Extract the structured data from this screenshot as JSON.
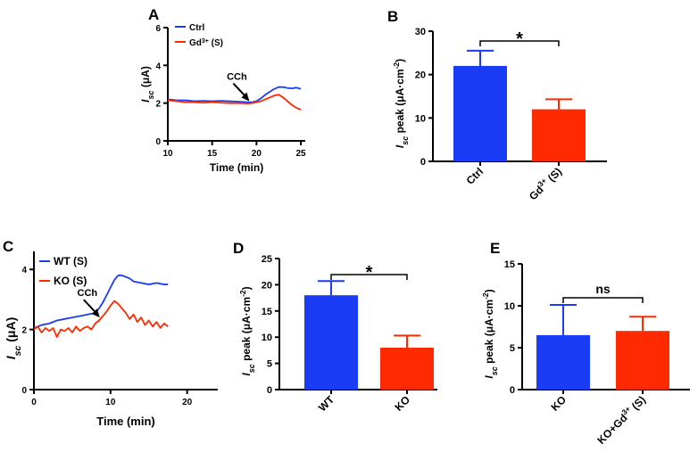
{
  "colors": {
    "blue": "#1a3cf5",
    "red": "#ff2a00",
    "black": "#000000"
  },
  "chart_data": [
    {
      "panel": "A",
      "type": "line",
      "xlabel": "Time (min)",
      "ylabel": "Isc (μA)",
      "ylabel_parts": {
        "main": "I",
        "sub": "sc",
        "rest": " (μA)"
      },
      "xlim": [
        10,
        25.5
      ],
      "ylim": [
        0,
        6
      ],
      "xticks": [
        10,
        15,
        20,
        25
      ],
      "yticks": [
        0,
        2,
        4,
        6
      ],
      "annotation": {
        "text": "CCh",
        "x": 19.2,
        "y": 2.1
      },
      "legend": [
        {
          "label": "Ctrl",
          "color": "#1a3cf5"
        },
        {
          "label": "Gd",
          "sup": "3+",
          "suffix": " (S)",
          "color": "#ff2a00"
        }
      ],
      "series": [
        {
          "name": "Ctrl",
          "color": "#1a3cf5",
          "x": [
            10,
            11,
            12,
            13,
            14,
            15,
            16,
            17,
            18,
            19,
            19.5,
            20,
            20.5,
            21,
            21.5,
            22,
            22.5,
            23,
            23.5,
            24,
            24.5,
            25
          ],
          "y": [
            2.2,
            2.15,
            2.15,
            2.1,
            2.12,
            2.1,
            2.12,
            2.1,
            2.08,
            2.05,
            2.05,
            2.1,
            2.25,
            2.45,
            2.6,
            2.75,
            2.85,
            2.85,
            2.8,
            2.78,
            2.82,
            2.75
          ]
        },
        {
          "name": "Gd3+ (S)",
          "color": "#ff2a00",
          "x": [
            10,
            11,
            12,
            13,
            14,
            15,
            16,
            17,
            18,
            19,
            19.5,
            20,
            20.5,
            21,
            21.5,
            22,
            22.5,
            23,
            23.5,
            24,
            24.5,
            25
          ],
          "y": [
            2.15,
            2.1,
            2.05,
            2.05,
            2.02,
            2.05,
            2.02,
            2.0,
            2.0,
            1.98,
            2.0,
            2.05,
            2.1,
            2.2,
            2.3,
            2.4,
            2.45,
            2.3,
            2.1,
            1.9,
            1.75,
            1.65
          ]
        }
      ]
    },
    {
      "panel": "B",
      "type": "bar",
      "ylabel": "Isc peak (μA·cm⁻²)",
      "ylabel_parts": {
        "main": "I",
        "sub": "sc",
        "rest": " peak (μA·cm",
        "sup": "-2",
        "end": ")"
      },
      "ylim": [
        0,
        30
      ],
      "yticks": [
        0,
        10,
        20,
        30
      ],
      "categories": [
        "Ctrl",
        "Gd3+ (S)"
      ],
      "category_parts": [
        {
          "main": "Ctrl"
        },
        {
          "main": "Gd",
          "sup": "3+",
          "suffix": " (S)"
        }
      ],
      "values": [
        22,
        12
      ],
      "errors": [
        3.5,
        2.3
      ],
      "colors": [
        "#1a3cf5",
        "#ff2a00"
      ],
      "significance": "*"
    },
    {
      "panel": "C",
      "type": "line",
      "xlabel": "Time (min)",
      "ylabel": "Isc (μA)",
      "ylabel_parts": {
        "main": "I",
        "sub": "sc",
        "rest": " (μA)"
      },
      "xlim": [
        0,
        24
      ],
      "ylim": [
        0,
        4.6
      ],
      "xticks": [
        0,
        10,
        20
      ],
      "yticks": [
        0,
        2,
        4
      ],
      "annotation": {
        "text": "CCh",
        "x": 8.6,
        "y": 2.4
      },
      "legend": [
        {
          "label": "WT (S)",
          "color": "#1a3cf5"
        },
        {
          "label": "KO (S)",
          "color": "#ff2a00"
        }
      ],
      "series": [
        {
          "name": "WT (S)",
          "color": "#1a3cf5",
          "x": [
            0,
            1,
            2,
            3,
            4,
            5,
            6,
            7,
            8,
            8.5,
            9,
            9.5,
            10,
            10.5,
            11,
            11.5,
            12,
            12.5,
            13,
            14,
            15,
            16,
            17,
            17.5
          ],
          "y": [
            2.05,
            2.15,
            2.2,
            2.3,
            2.35,
            2.4,
            2.45,
            2.5,
            2.55,
            2.7,
            2.9,
            3.15,
            3.4,
            3.65,
            3.8,
            3.8,
            3.75,
            3.7,
            3.6,
            3.55,
            3.5,
            3.55,
            3.5,
            3.5
          ]
        },
        {
          "name": "KO (S)",
          "color": "#ff2a00",
          "x": [
            0,
            0.5,
            1,
            1.5,
            2,
            2.5,
            3,
            3.5,
            4,
            4.5,
            5,
            5.5,
            6,
            6.5,
            7,
            7.5,
            8,
            8.5,
            9,
            9.5,
            10,
            10.5,
            11,
            11.5,
            12,
            12.5,
            13,
            13.5,
            14,
            14.5,
            15,
            15.5,
            16,
            16.5,
            17,
            17.5
          ],
          "y": [
            2.0,
            2.1,
            1.9,
            2.05,
            1.95,
            2.05,
            1.75,
            2.0,
            1.95,
            2.05,
            1.9,
            2.1,
            1.95,
            2.05,
            2.1,
            2.0,
            2.2,
            2.3,
            2.45,
            2.6,
            2.8,
            2.95,
            2.85,
            2.7,
            2.55,
            2.35,
            2.5,
            2.25,
            2.4,
            2.15,
            2.3,
            2.1,
            2.25,
            2.05,
            2.2,
            2.1
          ]
        }
      ]
    },
    {
      "panel": "D",
      "type": "bar",
      "ylabel": "Isc peak (μA·cm⁻²)",
      "ylabel_parts": {
        "main": "I",
        "sub": "sc",
        "rest": " peak (μA·cm",
        "sup": "-2",
        "end": ")"
      },
      "ylim": [
        0,
        25
      ],
      "yticks": [
        0,
        5,
        10,
        15,
        20,
        25
      ],
      "categories": [
        "WT",
        "KO"
      ],
      "category_parts": [
        {
          "main": "WT"
        },
        {
          "main": "KO"
        }
      ],
      "values": [
        18,
        8
      ],
      "errors": [
        2.7,
        2.3
      ],
      "colors": [
        "#1a3cf5",
        "#ff2a00"
      ],
      "significance": "*"
    },
    {
      "panel": "E",
      "type": "bar",
      "ylabel": "Isc peak (μA·cm⁻²)",
      "ylabel_parts": {
        "main": "I",
        "sub": "sc",
        "rest": " peak (μA·cm",
        "sup": "-2",
        "end": ")"
      },
      "ylim": [
        0,
        15
      ],
      "yticks": [
        0,
        5,
        10,
        15
      ],
      "categories": [
        "KO",
        "KO+Gd3+ (S)"
      ],
      "category_parts": [
        {
          "main": "KO"
        },
        {
          "main": "KO+Gd",
          "sup": "3+",
          "suffix": " (S)"
        }
      ],
      "values": [
        6.5,
        7.0
      ],
      "errors": [
        3.6,
        1.7
      ],
      "colors": [
        "#1a3cf5",
        "#ff2a00"
      ],
      "significance": "ns"
    }
  ]
}
